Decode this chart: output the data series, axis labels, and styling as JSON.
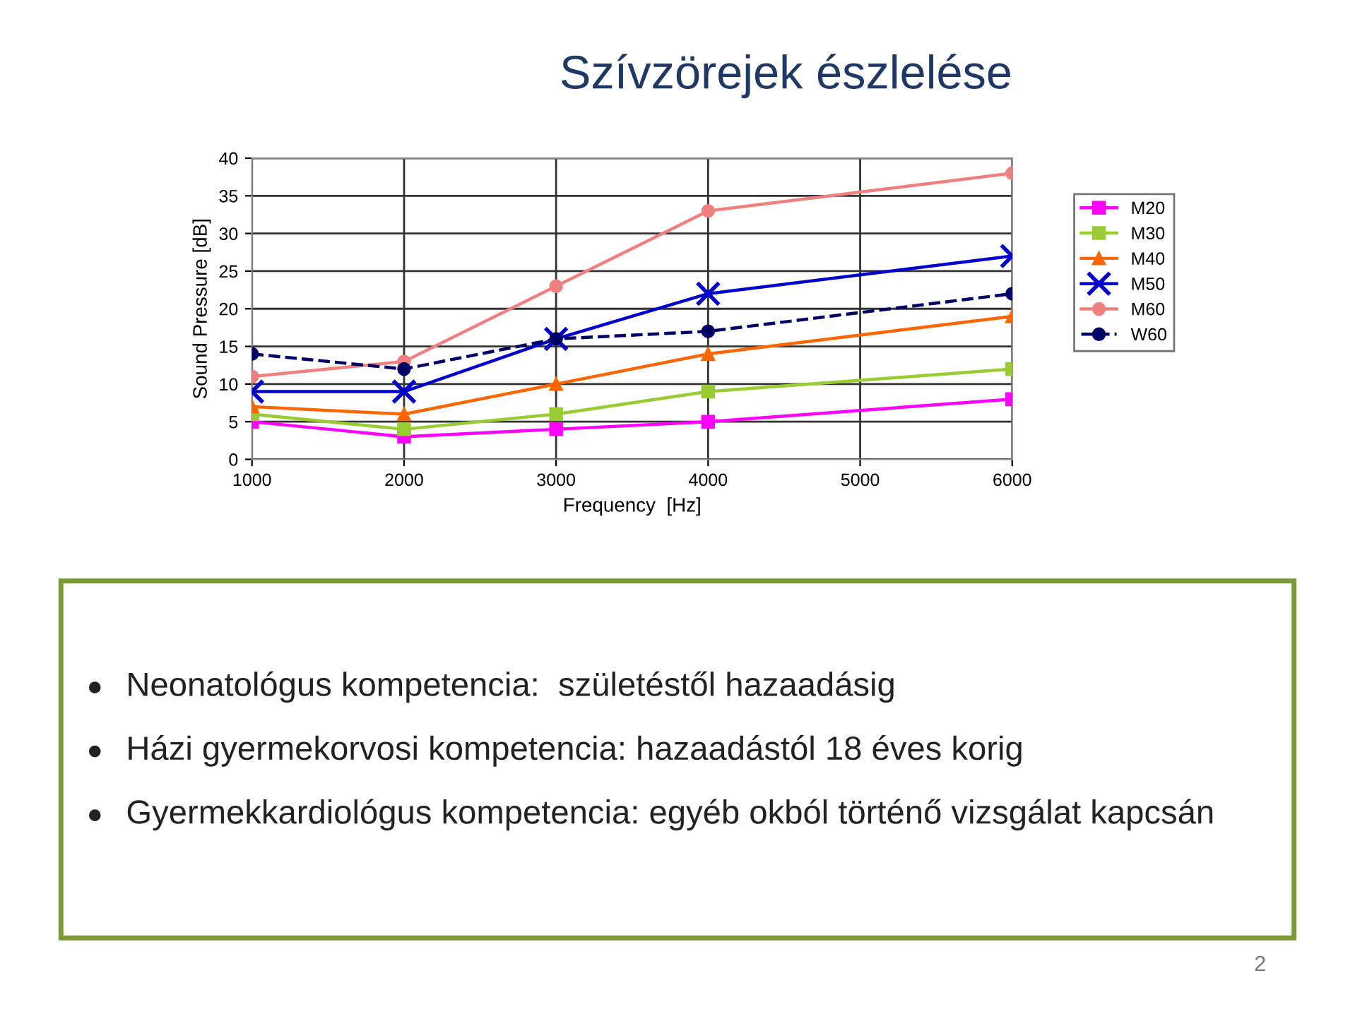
{
  "chart_data": {
    "type": "line",
    "title": "Szívzörejek észlelése",
    "xlabel": "Frequency  [Hz]",
    "ylabel": "Sound Pressure [dB]",
    "x": [
      1000,
      2000,
      3000,
      4000,
      6000
    ],
    "series": [
      {
        "name": "M20",
        "color": "#ff00ff",
        "values": [
          5,
          3,
          4,
          5,
          8
        ],
        "marker": "square",
        "line_style": "solid"
      },
      {
        "name": "M30",
        "color": "#99cc33",
        "values": [
          6,
          4,
          6,
          9,
          12
        ],
        "marker": "square",
        "line_style": "solid"
      },
      {
        "name": "M40",
        "color": "#ff6600",
        "values": [
          7,
          6,
          10,
          14,
          19
        ],
        "marker": "triangle",
        "line_style": "solid"
      },
      {
        "name": "M50",
        "color": "#0000cc",
        "values": [
          9,
          9,
          16,
          22,
          27
        ],
        "marker": "cross",
        "line_style": "solid"
      },
      {
        "name": "M60",
        "color": "#f08080",
        "values": [
          11,
          13,
          23,
          33,
          38
        ],
        "marker": "circle",
        "line_style": "solid"
      },
      {
        "name": "W60",
        "color": "#000066",
        "values": [
          14,
          12,
          16,
          17,
          22
        ],
        "marker": "circle",
        "line_style": "dashed"
      }
    ],
    "xlim": [
      1000,
      6000
    ],
    "xticks": [
      1000,
      2000,
      3000,
      4000,
      5000,
      6000
    ],
    "ylim": [
      0,
      40
    ],
    "yticks": [
      0,
      5,
      10,
      15,
      20,
      25,
      30,
      35,
      40
    ],
    "grid": true,
    "legend": "right",
    "annotations": [
      "Neonatológus kompetencia:  születéstől hazaadásig",
      "Házi gyermekorvosi kompetencia: hazaadástól 18 éves korig",
      "Gyermekkardiológus kompetencia: egyéb okból történő vizsgálat kapcsán",
      "2"
    ]
  }
}
